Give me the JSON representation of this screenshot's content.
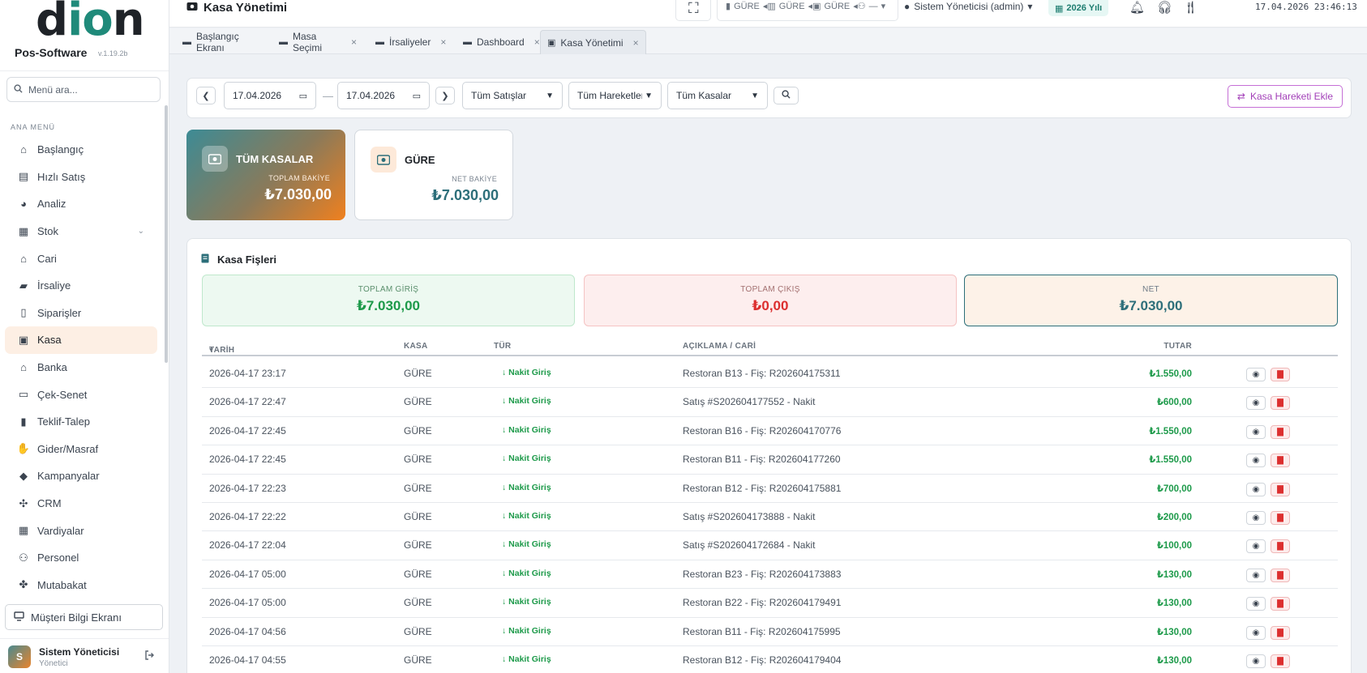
{
  "brand": {
    "logo_text_a": "d",
    "logo_text_io": "io",
    "logo_text_n": "n",
    "name": "Pos-Software",
    "version": "v.1.19.2b"
  },
  "search": {
    "placeholder": "Menü ara..."
  },
  "menu": {
    "heading": "ANA MENÜ",
    "items": [
      {
        "label": "Başlangıç",
        "icon": "home-icon"
      },
      {
        "label": "Hızlı Satış",
        "icon": "cash-register-icon"
      },
      {
        "label": "Analiz",
        "icon": "pie-chart-icon"
      },
      {
        "label": "Stok",
        "icon": "warehouse-icon",
        "has_children": true
      },
      {
        "label": "Cari",
        "icon": "bank-building-icon"
      },
      {
        "label": "İrsaliye",
        "icon": "truck-icon"
      },
      {
        "label": "Siparişler",
        "icon": "clipboard-icon"
      },
      {
        "label": "Kasa",
        "icon": "money-bill-icon",
        "active": true
      },
      {
        "label": "Banka",
        "icon": "bank-icon"
      },
      {
        "label": "Çek-Senet",
        "icon": "check-card-icon"
      },
      {
        "label": "Teklif-Talep",
        "icon": "file-icon"
      },
      {
        "label": "Gider/Masraf",
        "icon": "hand-coins-icon"
      },
      {
        "label": "Kampanyalar",
        "icon": "tags-icon"
      },
      {
        "label": "CRM",
        "icon": "handshake-icon"
      },
      {
        "label": "Vardiyalar",
        "icon": "calendar-icon"
      },
      {
        "label": "Personel",
        "icon": "users-icon"
      },
      {
        "label": "Mutabakat",
        "icon": "handshake-deal-icon"
      }
    ]
  },
  "customer_display": {
    "label": "Müşteri Bilgi Ekranı"
  },
  "user": {
    "initial": "S",
    "name": "Sistem Yöneticisi",
    "role": "Yönetici"
  },
  "topbar": {
    "title": "Kasa Yönetimi",
    "rooms": [
      "GÜRE",
      "GÜRE",
      "GÜRE",
      "—"
    ],
    "admin_label": "Sistem Yöneticisi (admin)",
    "year_label": "2026 Yılı",
    "datetime": "17.04.2026 23:46:13"
  },
  "tabs": [
    {
      "label": "Başlangıç Ekranı",
      "closable": false
    },
    {
      "label": "Masa Seçimi",
      "closable": true
    },
    {
      "label": "İrsaliyeler",
      "closable": true
    },
    {
      "label": "Dashboard",
      "closable": true
    },
    {
      "label": "Kasa Yönetimi",
      "closable": true,
      "active": true
    }
  ],
  "filter": {
    "date_from": "17.04.2026",
    "date_to": "17.04.2026",
    "sales_select": "Tüm Satışlar",
    "movements_select": "Tüm Hareketler",
    "registers_select": "Tüm Kasalar",
    "add_button": "Kasa Hareketi Ekle"
  },
  "cards": {
    "all": {
      "title": "TÜM KASALAR",
      "sub": "TOPLAM BAKİYE",
      "value": "₺7.030,00"
    },
    "gure": {
      "title": "GÜRE",
      "sub": "NET BAKİYE",
      "value": "₺7.030,00"
    }
  },
  "panel": {
    "title": "Kasa Fişleri",
    "stats": {
      "in": {
        "label": "TOPLAM GİRİŞ",
        "value": "₺7.030,00"
      },
      "out": {
        "label": "TOPLAM ÇIKIŞ",
        "value": "₺0,00"
      },
      "net": {
        "label": "NET",
        "value": "₺7.030,00"
      }
    },
    "columns": {
      "date": "TARİH",
      "kasa": "KASA",
      "type": "TÜR",
      "desc": "AÇIKLAMA / CARİ",
      "amount": "TUTAR"
    },
    "rows": [
      {
        "date": "2026-04-17 23:17",
        "kasa": "GÜRE",
        "type": "↓ Nakit Giriş",
        "desc": "Restoran B13 - Fiş: R202604175311",
        "amount": "₺1.550,00"
      },
      {
        "date": "2026-04-17 22:47",
        "kasa": "GÜRE",
        "type": "↓ Nakit Giriş",
        "desc": "Satış #S202604177552 - Nakit",
        "amount": "₺600,00"
      },
      {
        "date": "2026-04-17 22:45",
        "kasa": "GÜRE",
        "type": "↓ Nakit Giriş",
        "desc": "Restoran B16 - Fiş: R202604170776",
        "amount": "₺1.550,00"
      },
      {
        "date": "2026-04-17 22:45",
        "kasa": "GÜRE",
        "type": "↓ Nakit Giriş",
        "desc": "Restoran B11 - Fiş: R202604177260",
        "amount": "₺1.550,00"
      },
      {
        "date": "2026-04-17 22:23",
        "kasa": "GÜRE",
        "type": "↓ Nakit Giriş",
        "desc": "Restoran B12 - Fiş: R202604175881",
        "amount": "₺700,00"
      },
      {
        "date": "2026-04-17 22:22",
        "kasa": "GÜRE",
        "type": "↓ Nakit Giriş",
        "desc": "Satış #S202604173888 - Nakit",
        "amount": "₺200,00"
      },
      {
        "date": "2026-04-17 22:04",
        "kasa": "GÜRE",
        "type": "↓ Nakit Giriş",
        "desc": "Satış #S202604172684 - Nakit",
        "amount": "₺100,00"
      },
      {
        "date": "2026-04-17 05:00",
        "kasa": "GÜRE",
        "type": "↓ Nakit Giriş",
        "desc": "Restoran B23 - Fiş: R202604173883",
        "amount": "₺130,00"
      },
      {
        "date": "2026-04-17 05:00",
        "kasa": "GÜRE",
        "type": "↓ Nakit Giriş",
        "desc": "Restoran B22 - Fiş: R202604179491",
        "amount": "₺130,00"
      },
      {
        "date": "2026-04-17 04:56",
        "kasa": "GÜRE",
        "type": "↓ Nakit Giriş",
        "desc": "Restoran B11 - Fiş: R202604175995",
        "amount": "₺130,00"
      },
      {
        "date": "2026-04-17 04:55",
        "kasa": "GÜRE",
        "type": "↓ Nakit Giriş",
        "desc": "Restoran B12 - Fiş: R202604179404",
        "amount": "₺130,00"
      }
    ]
  },
  "colors": {
    "accent": "#2d6f7a",
    "orange": "#f0801e",
    "in": "#1d9a4a",
    "out": "#dc2f2f",
    "purple": "#a23fb8"
  }
}
